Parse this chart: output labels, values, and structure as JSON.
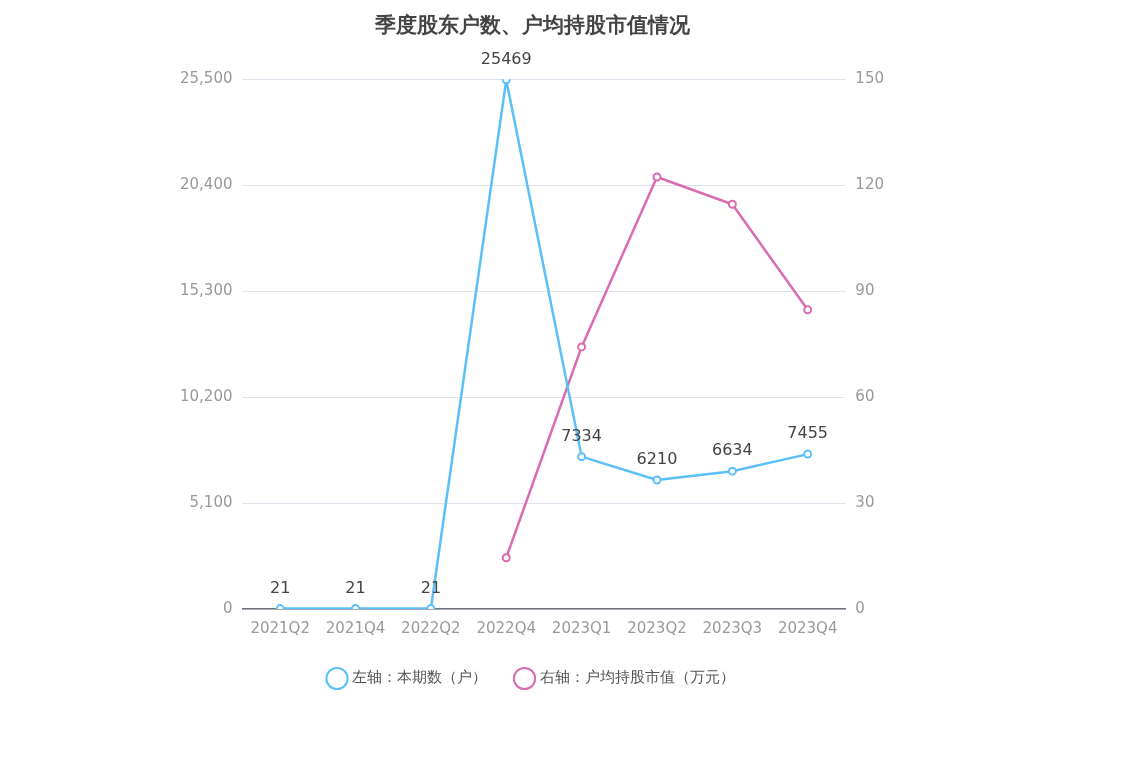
{
  "chart_data": {
    "type": "line",
    "title": "季度股东户数、户均持股市值情况",
    "categories": [
      "2021Q2",
      "2021Q4",
      "2022Q2",
      "2022Q4",
      "2023Q1",
      "2023Q2",
      "2023Q3",
      "2023Q4"
    ],
    "series": [
      {
        "name": "左轴：本期数（户）",
        "color": "#5bc0f8",
        "values": [
          21,
          21,
          21,
          25469,
          7334,
          6210,
          6634,
          7455
        ],
        "value_labels": [
          "21",
          "21",
          "21",
          "25469",
          "7334",
          "6210",
          "6634",
          "7455"
        ]
      },
      {
        "name": "右轴：户均持股市值（万元）",
        "color": "#d96bb0",
        "axis": "y2",
        "values": [
          null,
          null,
          null,
          14.5,
          74.2,
          122.3,
          114.6,
          84.7
        ]
      }
    ],
    "ylim": [
      0,
      25500
    ],
    "yticks": [
      0,
      {
        "value": 5100,
        "label": "5,100"
      },
      {
        "value": 10200,
        "label": "10,200"
      },
      {
        "value": 15300,
        "label": "15,300"
      },
      {
        "value": 20400,
        "label": "20,400"
      },
      {
        "value": 25500,
        "label": "25,500"
      }
    ],
    "y2lim": [
      0,
      150
    ],
    "y2ticks": [
      0,
      30,
      60,
      90,
      120,
      150
    ],
    "grid": "y",
    "legend": "bottom",
    "marker": "circle",
    "line_style": "solid"
  }
}
